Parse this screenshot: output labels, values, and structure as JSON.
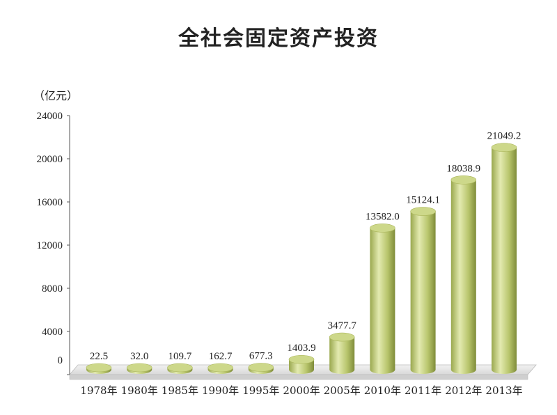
{
  "chart_data": {
    "type": "bar",
    "title": "全社会固定资产投资",
    "unit_label": "（亿元）",
    "categories": [
      "1978年",
      "1980年",
      "1985年",
      "1990年",
      "1995年",
      "2000年",
      "2005年",
      "2010年",
      "2011年",
      "2012年",
      "2013年"
    ],
    "values": [
      22.5,
      32.0,
      109.7,
      162.7,
      677.3,
      1403.9,
      3477.7,
      13582.0,
      15124.1,
      18038.9,
      21049.2
    ],
    "value_labels": [
      "22.5",
      "32.0",
      "109.7",
      "162.7",
      "677.3",
      "1403.9",
      "3477.7",
      "13582.0",
      "15124.1",
      "18038.9",
      "21049.2"
    ],
    "y_ticks": [
      "0",
      "4000",
      "8000",
      "12000",
      "16000",
      "20000",
      "24000"
    ],
    "ylim": [
      0,
      24000
    ],
    "grid": false,
    "style": "3d-cylinder",
    "colors": {
      "bar_light": "#e3eab0",
      "bar_mid": "#b8c56c",
      "bar_dark": "#7f8c3a",
      "top": "#cdd88a"
    }
  }
}
